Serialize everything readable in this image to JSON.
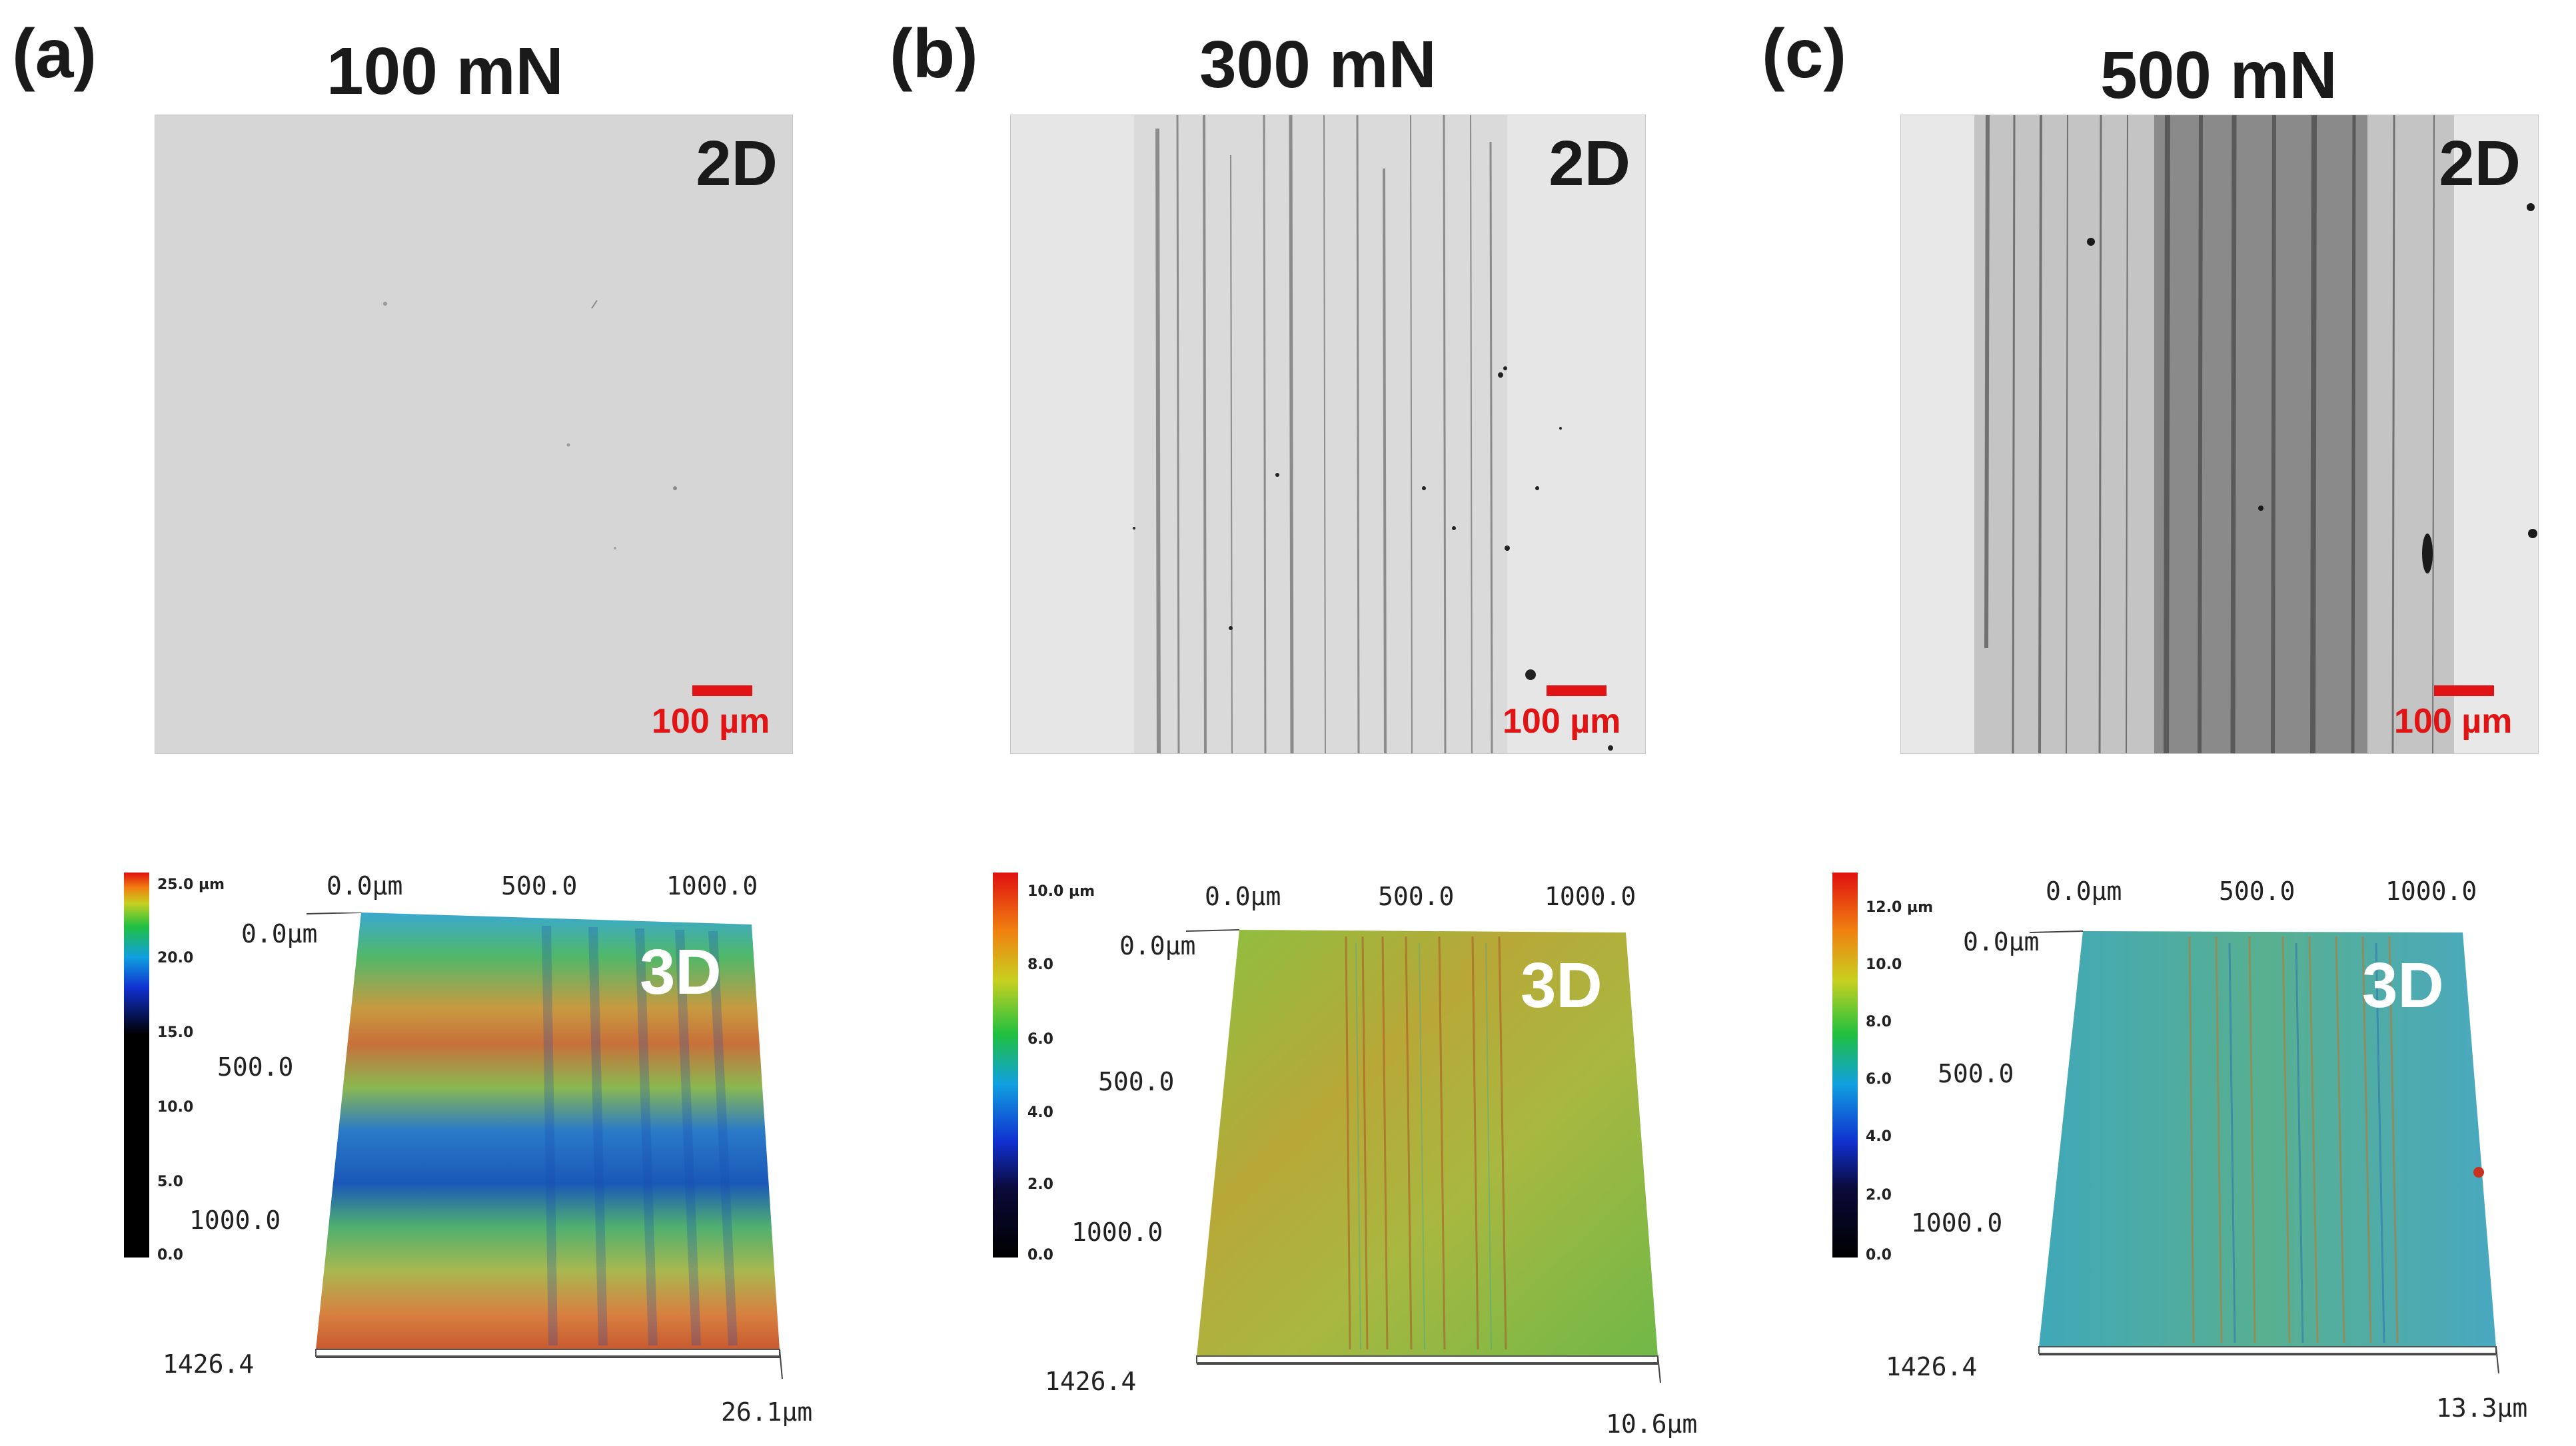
{
  "figure": {
    "panels": [
      {
        "letter": "(a)",
        "load": "100 mN",
        "micrograph": {
          "dim_label": "2D",
          "scale_bar": "100 µm",
          "wear": "none"
        },
        "profile": {
          "dim_label": "3D",
          "colorbar_ticks": [
            "25.0 µm",
            "20.0",
            "15.0",
            "10.0",
            "5.0",
            "0.0"
          ],
          "x_ticks": [
            "0.0µm",
            "500.0",
            "1000.0"
          ],
          "y_ticks": [
            "0.0µm",
            "500.0",
            "1000.0"
          ],
          "corner_label": "1426.4",
          "z_max": "26.1µm"
        }
      },
      {
        "letter": "(b)",
        "load": "300 mN",
        "micrograph": {
          "dim_label": "2D",
          "scale_bar": "100 µm",
          "wear": "moderate"
        },
        "profile": {
          "dim_label": "3D",
          "colorbar_ticks": [
            "10.0 µm",
            "8.0",
            "6.0",
            "4.0",
            "2.0",
            "0.0"
          ],
          "x_ticks": [
            "0.0µm",
            "500.0",
            "1000.0"
          ],
          "y_ticks": [
            "0.0µm",
            "500.0",
            "1000.0"
          ],
          "corner_label": "1426.4",
          "z_max": "10.6µm"
        }
      },
      {
        "letter": "(c)",
        "load": "500 mN",
        "micrograph": {
          "dim_label": "2D",
          "scale_bar": "100 µm",
          "wear": "severe"
        },
        "profile": {
          "dim_label": "3D",
          "colorbar_ticks": [
            "12.0 µm",
            "10.0",
            "8.0",
            "6.0",
            "4.0",
            "2.0",
            "0.0"
          ],
          "x_ticks": [
            "0.0µm",
            "500.0",
            "1000.0"
          ],
          "y_ticks": [
            "0.0µm",
            "500.0",
            "1000.0"
          ],
          "corner_label": "1426.4",
          "z_max": "13.3µm"
        }
      }
    ],
    "colors": {
      "scale_bar": "#e01414",
      "label_dark": "#1a1a1a",
      "label_light": "#ffffff",
      "micrograph_bg": "#d8d8d8"
    }
  }
}
